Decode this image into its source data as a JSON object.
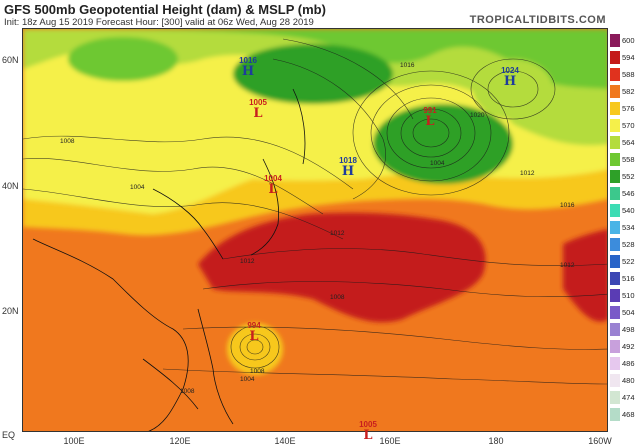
{
  "header": {
    "title": "GFS 500mb Geopotential Height (dam) & MSLP (mb)",
    "subtitle": "Init: 18z Aug 15 2019   Forecast Hour: [300]   valid at 06z Wed, Aug 28 2019",
    "brand": "TROPICALTIDBITS.COM"
  },
  "axes": {
    "lat_labels": [
      "60N",
      "40N",
      "20N",
      "EQ"
    ],
    "lon_labels": [
      "100E",
      "120E",
      "140E",
      "160E",
      "180",
      "160W"
    ]
  },
  "colorbar": {
    "levels": [
      "600",
      "594",
      "588",
      "582",
      "576",
      "570",
      "564",
      "558",
      "552",
      "546",
      "540",
      "534",
      "528",
      "522",
      "516",
      "510",
      "504",
      "498",
      "492",
      "486",
      "480",
      "474",
      "468"
    ],
    "colors": [
      "#8a1a5a",
      "#c41a1a",
      "#e0321e",
      "#f0781e",
      "#f7c81e",
      "#f5f04a",
      "#b4dc3c",
      "#6ec832",
      "#2ea028",
      "#3cc88c",
      "#3cdcb4",
      "#4ab4e6",
      "#3c8cdc",
      "#2864c8",
      "#3c46b4",
      "#5a3cb4",
      "#7a5ac8",
      "#9a82d2",
      "#c8a0dc",
      "#e6c8ee",
      "#f0e6f0",
      "#d2e6d2",
      "#b4dcc8"
    ]
  },
  "pressure_centers": [
    {
      "type": "H",
      "value": "1016",
      "name": "high-1016-north"
    },
    {
      "type": "L",
      "value": "1005",
      "name": "low-1005-north"
    },
    {
      "type": "L",
      "value": "991",
      "name": "low-991"
    },
    {
      "type": "H",
      "value": "1024",
      "name": "high-1024"
    },
    {
      "type": "H",
      "value": "1018",
      "name": "high-1018"
    },
    {
      "type": "L",
      "value": "1004",
      "name": "low-1004"
    },
    {
      "type": "L",
      "value": "994",
      "name": "low-994-tropical"
    },
    {
      "type": "L",
      "value": "1005",
      "name": "low-1005-south"
    }
  ],
  "isobar_labels": [
    "1008",
    "1004",
    "1012",
    "1016",
    "1020",
    "1012",
    "1008",
    "1004",
    "1016",
    "1012",
    "1008",
    "1004",
    "1008",
    "1012"
  ]
}
